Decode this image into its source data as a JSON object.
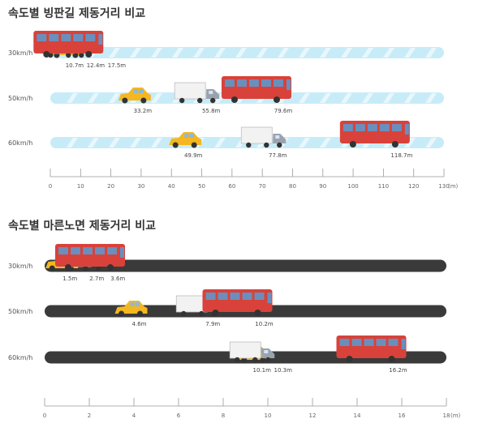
{
  "chart_data": [
    {
      "type": "bar",
      "title": "속도별 빙판길 제동거리 비교",
      "unit": "(m)",
      "xlim": [
        0,
        130
      ],
      "ticks": [
        0,
        10,
        20,
        30,
        40,
        50,
        60,
        70,
        80,
        90,
        100,
        110,
        120,
        130
      ],
      "road_color": "#c7ecf8",
      "rows": [
        {
          "speed": "30km/h",
          "values": [
            10.7,
            12.4,
            17.5
          ],
          "labels": [
            "10.7m",
            "12.4m",
            "17.5m"
          ]
        },
        {
          "speed": "50km/h",
          "values": [
            33.2,
            55.8,
            79.6
          ],
          "labels": [
            "33.2m",
            "55.8m",
            "79.6m"
          ]
        },
        {
          "speed": "60km/h",
          "values": [
            49.9,
            77.8,
            118.7
          ],
          "labels": [
            "49.9m",
            "77.8m",
            "118.7m"
          ]
        }
      ]
    },
    {
      "type": "bar",
      "title": "속도별 마른노면 제동거리 비교",
      "unit": "(m)",
      "xlim": [
        0,
        18
      ],
      "ticks": [
        0,
        2,
        4,
        6,
        8,
        10,
        12,
        14,
        16,
        18
      ],
      "road_color": "#3a3a3a",
      "rows": [
        {
          "speed": "30km/h",
          "values": [
            1.5,
            2.7,
            3.6
          ],
          "labels": [
            "1.5m",
            "2.7m",
            "3.6m"
          ]
        },
        {
          "speed": "50km/h",
          "values": [
            4.6,
            7.9,
            10.2
          ],
          "labels": [
            "4.6m",
            "7.9m",
            "10.2m"
          ]
        },
        {
          "speed": "60km/h",
          "values": [
            10.1,
            10.3,
            16.2
          ],
          "labels": [
            "10.1m",
            "10.3m",
            "16.2m"
          ]
        }
      ]
    }
  ],
  "vehicles": [
    "car",
    "truck",
    "bus"
  ],
  "colors": {
    "car": "#f4b720",
    "bus": "#d8423a",
    "truck": "#f2f2f2"
  }
}
